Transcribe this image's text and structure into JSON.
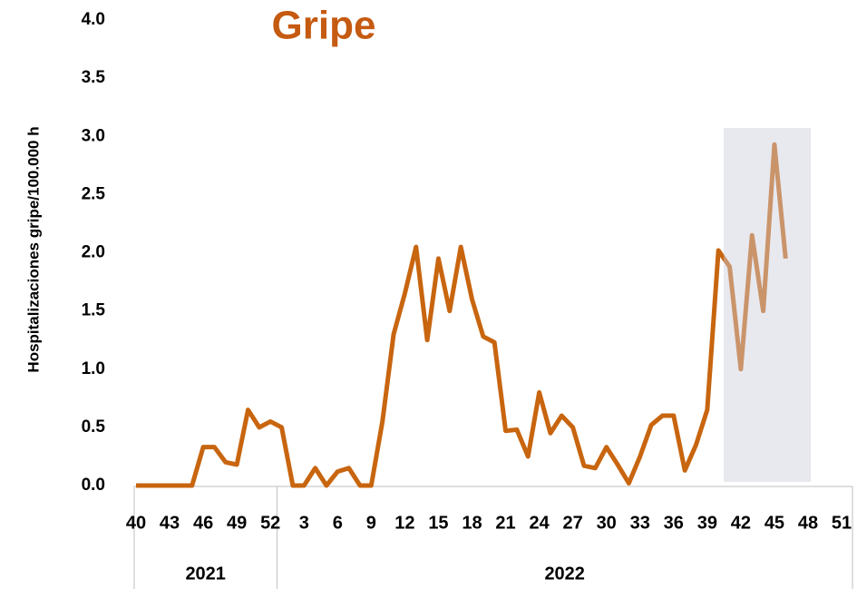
{
  "chart_data": {
    "type": "line",
    "title": "Gripe",
    "y_label": "Hospitalizaciones gripe/100.000 h",
    "categories": [
      "40",
      null,
      null,
      "43",
      null,
      null,
      "46",
      null,
      null,
      "49",
      null,
      null,
      "52",
      null,
      null,
      "3",
      null,
      null,
      "6",
      null,
      null,
      "9",
      null,
      null,
      "12",
      null,
      null,
      "15",
      null,
      null,
      "18",
      null,
      null,
      "21",
      null,
      null,
      "24",
      null,
      null,
      "27",
      null,
      null,
      "30",
      null,
      null,
      "33",
      null,
      null,
      "36",
      null,
      null,
      "39",
      null,
      null,
      "42",
      null,
      null,
      "45",
      null,
      null,
      "48",
      null,
      null,
      "51",
      null
    ],
    "groups": [
      "2021",
      "2022"
    ],
    "series": [
      {
        "name": "Gripe",
        "color": "#c8650f",
        "values": [
          0,
          0,
          0,
          0,
          0,
          0,
          0.33,
          0.33,
          0.2,
          0.18,
          0.65,
          0.5,
          0.55,
          0.5,
          0,
          0,
          0.15,
          0,
          0.12,
          0.15,
          0,
          0,
          0.55,
          1.3,
          1.65,
          2.05,
          1.25,
          1.95,
          1.5,
          2.05,
          1.6,
          1.28,
          1.23,
          0.47,
          0.48,
          0.25,
          0.8,
          0.45,
          0.6,
          0.5,
          0.17,
          0.15,
          0.33,
          0.18,
          0.02,
          0.25,
          0.52,
          0.6,
          0.6,
          0.13,
          0.35,
          0.65,
          2.02,
          1.88,
          1.0,
          2.15,
          1.5,
          2.93,
          1.95,
          null,
          null,
          null,
          null,
          null,
          null
        ]
      }
    ],
    "ylim": [
      0,
      4
    ],
    "yticks": [
      {
        "value": 0,
        "label": "0.0"
      },
      0.5,
      {
        "value": 1,
        "label": "1.0"
      },
      1.5,
      {
        "value": 2,
        "label": "2.0"
      },
      2.5,
      {
        "value": 3,
        "label": "3.0"
      },
      3.5,
      {
        "value": 4,
        "label": "4.0"
      }
    ],
    "grid": false
  }
}
